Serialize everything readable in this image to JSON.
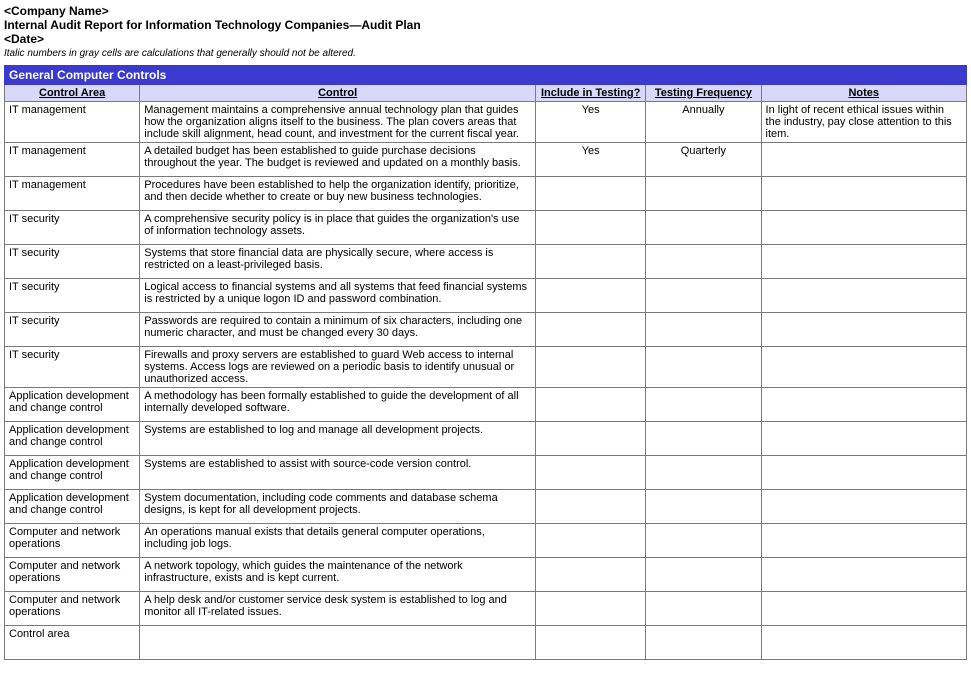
{
  "header": {
    "company": "<Company Name>",
    "title": "Internal Audit Report for Information Technology Companies—Audit Plan",
    "date": "<Date>",
    "note": "Italic numbers in gray cells are calculations that generally should not be altered."
  },
  "section_title": "General Computer Controls",
  "columns": {
    "area": "Control Area",
    "control": "Control",
    "include": "Include in Testing?",
    "freq": "Testing Frequency",
    "notes": "Notes"
  },
  "rows": [
    {
      "area": "IT management",
      "control": "Management maintains a comprehensive annual technology plan that guides how the organization aligns itself to the business. The plan covers areas that include skill alignment, head count, and investment for the current fiscal year.",
      "include": "Yes",
      "freq": "Annually",
      "notes": "In light of recent ethical issues within the industry, pay close attention to this item."
    },
    {
      "area": "IT management",
      "control": "A detailed budget has been established to guide purchase decisions throughout the year. The budget is reviewed and updated on a monthly basis.",
      "include": "Yes",
      "freq": "Quarterly",
      "notes": ""
    },
    {
      "area": "IT management",
      "control": "Procedures have been established to help the organization identify, prioritize, and then decide whether to create or buy new business technologies.",
      "include": "",
      "freq": "",
      "notes": ""
    },
    {
      "area": "IT security",
      "control": "A comprehensive security policy is in place that guides the organization's use of information technology assets.",
      "include": "",
      "freq": "",
      "notes": ""
    },
    {
      "area": "IT security",
      "control": "Systems that store financial data are physically secure, where access is restricted on a least-privileged basis.",
      "include": "",
      "freq": "",
      "notes": ""
    },
    {
      "area": "IT security",
      "control": "Logical access to financial systems and all systems that feed financial systems is restricted by a unique logon ID and password combination.",
      "include": "",
      "freq": "",
      "notes": ""
    },
    {
      "area": "IT security",
      "control": "Passwords are required to contain a minimum of six characters, including one numeric character, and must be changed every 30 days.",
      "include": "",
      "freq": "",
      "notes": ""
    },
    {
      "area": "IT security",
      "control": "Firewalls and proxy servers are established to guard Web access to internal systems. Access logs are reviewed on a periodic basis to identify unusual or unauthorized access.",
      "include": "",
      "freq": "",
      "notes": ""
    },
    {
      "area": "Application development and change control",
      "control": "A methodology has been formally established to guide the development of all internally developed software.",
      "include": "",
      "freq": "",
      "notes": ""
    },
    {
      "area": "Application development and change control",
      "control": "Systems are established to log and manage all development projects.",
      "include": "",
      "freq": "",
      "notes": ""
    },
    {
      "area": "Application development and change control",
      "control": "Systems are established to assist with source-code version control.",
      "include": "",
      "freq": "",
      "notes": ""
    },
    {
      "area": "Application development and change control",
      "control": "System documentation, including code comments and database schema designs, is kept for all development projects.",
      "include": "",
      "freq": "",
      "notes": ""
    },
    {
      "area": "Computer and network operations",
      "control": "An operations manual exists that details general computer operations, including job logs.",
      "include": "",
      "freq": "",
      "notes": ""
    },
    {
      "area": "Computer and network operations",
      "control": "A network topology, which guides the maintenance of the network infrastructure, exists and is kept current.",
      "include": "",
      "freq": "",
      "notes": ""
    },
    {
      "area": "Computer and network operations",
      "control": "A help desk and/or customer service desk system is established to log and monitor all IT-related issues.",
      "include": "",
      "freq": "",
      "notes": ""
    },
    {
      "area": "Control area",
      "control": "",
      "include": "",
      "freq": "",
      "notes": ""
    }
  ]
}
